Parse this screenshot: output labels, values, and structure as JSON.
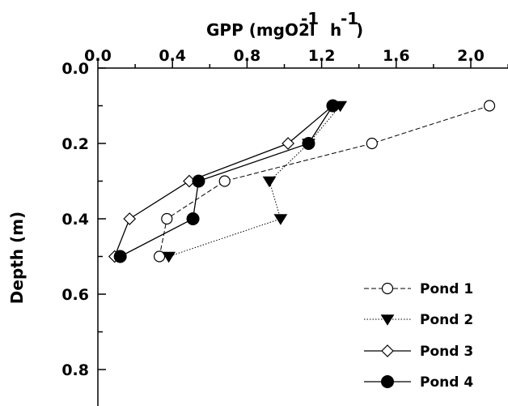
{
  "chart_data": {
    "type": "line",
    "title": "",
    "xlabel_main": "GPP (mgO2l",
    "xlabel_sup1": "-1",
    "xlabel_mid": "h",
    "xlabel_sup2": "-1",
    "xlabel_end": ")",
    "ylabel": "Depth (m)",
    "x_axis_position": "top",
    "y_inverted": true,
    "xlim": [
      0.0,
      2.2
    ],
    "ylim": [
      0.0,
      0.9
    ],
    "x_ticks": [
      "0.0",
      "0.4",
      "0.8",
      "1.2",
      "1.6",
      "2.0"
    ],
    "y_ticks": [
      "0.0",
      "0.2",
      "0.4",
      "0.6",
      "0.8"
    ],
    "grid": false,
    "legend_position": "bottom-right",
    "series": [
      {
        "name": "Pond 1",
        "marker": "open-circle",
        "line": "dashed",
        "points": [
          [
            2.1,
            0.1
          ],
          [
            1.47,
            0.2
          ],
          [
            0.68,
            0.3
          ],
          [
            0.37,
            0.4
          ],
          [
            0.33,
            0.5
          ]
        ]
      },
      {
        "name": "Pond 2",
        "marker": "filled-triangle-down",
        "line": "dotted",
        "points": [
          [
            1.3,
            0.1
          ],
          [
            1.13,
            0.2
          ],
          [
            0.92,
            0.3
          ],
          [
            0.98,
            0.4
          ],
          [
            0.38,
            0.5
          ]
        ]
      },
      {
        "name": "Pond 3",
        "marker": "open-diamond",
        "line": "solid",
        "points": [
          [
            1.26,
            0.1
          ],
          [
            1.02,
            0.2
          ],
          [
            0.49,
            0.3
          ],
          [
            0.17,
            0.4
          ],
          [
            0.09,
            0.5
          ]
        ]
      },
      {
        "name": "Pond 4",
        "marker": "filled-circle",
        "line": "solid",
        "points": [
          [
            1.26,
            0.1
          ],
          [
            1.13,
            0.2
          ],
          [
            0.54,
            0.3
          ],
          [
            0.51,
            0.4
          ],
          [
            0.12,
            0.5
          ]
        ]
      }
    ]
  }
}
